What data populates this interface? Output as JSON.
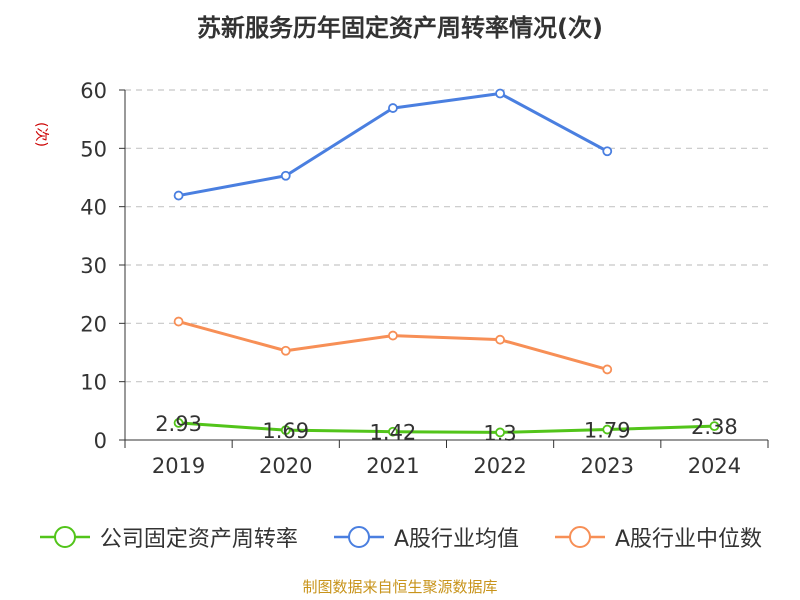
{
  "title": "苏新服务历年固定资产周转率情况(次)",
  "y_unit_label": "(次)",
  "source_note": "制图数据来自恒生聚源数据库",
  "colors": {
    "series_company": "#52c41a",
    "series_avg": "#4a7fe0",
    "series_median": "#f78f56",
    "grid": "#c8c8c8",
    "axis": "#333333",
    "text": "#333333",
    "unit_label": "#cc0000",
    "source": "#c8941b"
  },
  "chart_data": {
    "type": "line",
    "categories": [
      "2019",
      "2020",
      "2021",
      "2022",
      "2023",
      "2024"
    ],
    "ylim": [
      0,
      60
    ],
    "yticks": [
      0,
      10,
      20,
      30,
      40,
      50,
      60
    ],
    "grid": true,
    "legend_position": "bottom",
    "series": [
      {
        "name": "公司固定资产周转率",
        "color_key": "series_company",
        "values": [
          2.93,
          1.69,
          1.42,
          1.3,
          1.79,
          2.38
        ],
        "labels": [
          "2.93",
          "1.69",
          "1.42",
          "1.3",
          "1.79",
          "2.38"
        ]
      },
      {
        "name": "A股行业均值",
        "color_key": "series_avg",
        "values": [
          41.9,
          45.3,
          56.9,
          59.4,
          49.5,
          null
        ]
      },
      {
        "name": "A股行业中位数",
        "color_key": "series_median",
        "values": [
          20.3,
          15.3,
          17.9,
          17.2,
          12.1,
          null
        ]
      }
    ]
  }
}
